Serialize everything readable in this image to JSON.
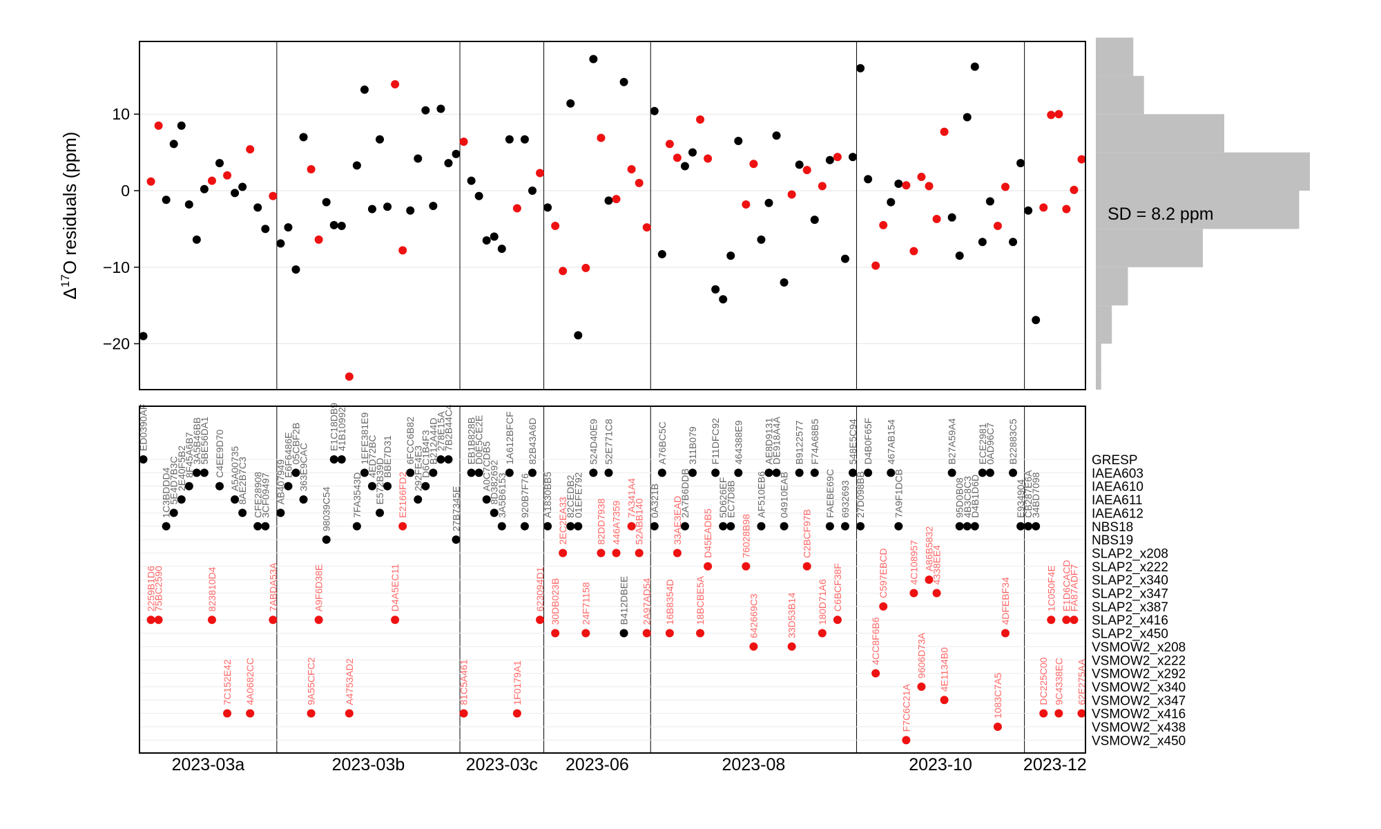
{
  "chart_data": [
    {
      "type": "scatter",
      "ylabel_main": "Δ",
      "ylabel_sup": "17",
      "ylabel_rest": "O residuals (ppm)",
      "ylim": [
        -26,
        19.5
      ],
      "yticks": [
        -20,
        -10,
        0,
        10
      ],
      "ytick_labels": [
        "−20",
        "−10",
        "0",
        "10"
      ],
      "grid": "horizontal",
      "colors": {
        "black": "#000000",
        "red": "#ee1111"
      },
      "groups": [
        {
          "name": "2023-03a",
          "start": 0,
          "end": 17
        },
        {
          "name": "2023-03b",
          "start": 18,
          "end": 41
        },
        {
          "name": "2023-03c",
          "start": 42,
          "end": 52
        },
        {
          "name": "2023-06",
          "start": 53,
          "end": 66
        },
        {
          "name": "2023-08",
          "start": 67,
          "end": 93
        },
        {
          "name": "2023-10",
          "start": 94,
          "end": 115
        },
        {
          "name": "2023-12",
          "start": 116,
          "end": 123
        }
      ],
      "points": [
        {
          "id": "ED0390AF",
          "ref": "GRESP",
          "y": -19.0,
          "c": "black"
        },
        {
          "id": "2259B1D6",
          "ref": "SLAP2_x416",
          "y": 1.2,
          "c": "red"
        },
        {
          "id": "75BC2590",
          "ref": "SLAP2_x416",
          "y": 8.5,
          "c": "red"
        },
        {
          "id": "1C3BDDD4",
          "ref": "NBS18",
          "y": -1.2,
          "c": "black"
        },
        {
          "id": "5E4D7B3C",
          "ref": "IAEA612",
          "y": 6.1,
          "c": "black"
        },
        {
          "id": "2E40F5B2",
          "ref": "IAEA611",
          "y": 8.5,
          "c": "black"
        },
        {
          "id": "8F45A6B7",
          "ref": "IAEA610",
          "y": -1.8,
          "c": "black"
        },
        {
          "id": "3A5B46BB",
          "ref": "IAEA603",
          "y": -6.4,
          "c": "black"
        },
        {
          "id": "5BE56DA1",
          "ref": "IAEA603",
          "y": 0.2,
          "c": "black"
        },
        {
          "id": "823810D4",
          "ref": "SLAP2_x416",
          "y": 1.3,
          "c": "red"
        },
        {
          "id": "C4EE9D70",
          "ref": "IAEA610",
          "y": 3.6,
          "c": "black"
        },
        {
          "id": "7C152E42",
          "ref": "VSMOW2_x416",
          "y": 2.0,
          "c": "red"
        },
        {
          "id": "A5A00735",
          "ref": "IAEA611",
          "y": -0.3,
          "c": "black"
        },
        {
          "id": "8AE2B7C3",
          "ref": "IAEA612",
          "y": 0.5,
          "c": "black"
        },
        {
          "id": "4A0682CC",
          "ref": "VSMOW2_x416",
          "y": 5.4,
          "c": "red"
        },
        {
          "id": "CFE28908",
          "ref": "NBS18",
          "y": -2.2,
          "c": "black"
        },
        {
          "id": "3CF09497",
          "ref": "NBS18",
          "y": -5.0,
          "c": "black"
        },
        {
          "id": "7ABDA53A",
          "ref": "SLAP2_x416",
          "y": -0.7,
          "c": "red"
        },
        {
          "id": "AB407949",
          "ref": "IAEA612",
          "y": -6.9,
          "c": "black"
        },
        {
          "id": "E6F6486E",
          "ref": "IAEA610",
          "y": -4.8,
          "c": "black"
        },
        {
          "id": "05CBF2B",
          "ref": "IAEA603",
          "y": -10.3,
          "c": "black"
        },
        {
          "id": "363E9CAC",
          "ref": "IAEA611",
          "y": 7.0,
          "c": "black"
        },
        {
          "id": "9A55CFC2",
          "ref": "VSMOW2_x416",
          "y": 2.8,
          "c": "red"
        },
        {
          "id": "A9F6D38E",
          "ref": "SLAP2_x416",
          "y": -6.4,
          "c": "red"
        },
        {
          "id": "98039C54",
          "ref": "NBS19",
          "y": -1.5,
          "c": "black"
        },
        {
          "id": "E1C18DB9",
          "ref": "GRESP",
          "y": -4.5,
          "c": "black"
        },
        {
          "id": "41B10992",
          "ref": "GRESP",
          "y": -4.6,
          "c": "black"
        },
        {
          "id": "A4753AD2",
          "ref": "VSMOW2_x416",
          "y": -24.3,
          "c": "red"
        },
        {
          "id": "7FA3543D",
          "ref": "NBS18",
          "y": 3.3,
          "c": "black"
        },
        {
          "id": "1EFE381E9",
          "ref": "IAEA603",
          "y": 13.2,
          "c": "black"
        },
        {
          "id": "4ED72BC",
          "ref": "IAEA610",
          "y": -2.4,
          "c": "black"
        },
        {
          "id": "E572B39D",
          "ref": "IAEA612",
          "y": 6.7,
          "c": "black"
        },
        {
          "id": "BBE7D31",
          "ref": "IAEA610",
          "y": -2.1,
          "c": "black"
        },
        {
          "id": "D4A5EC11",
          "ref": "SLAP2_x416",
          "y": 13.9,
          "c": "red"
        },
        {
          "id": "E2166FD2",
          "ref": "NBS18",
          "y": -7.8,
          "c": "red"
        },
        {
          "id": "6FCC6B82",
          "ref": "IAEA603",
          "y": -2.6,
          "c": "black"
        },
        {
          "id": "292FE4E3",
          "ref": "IAEA611",
          "y": 4.2,
          "c": "black"
        },
        {
          "id": "D6C1B4F3",
          "ref": "IAEA610",
          "y": 10.5,
          "c": "black"
        },
        {
          "id": "B212A44D",
          "ref": "IAEA603",
          "y": -2.0,
          "c": "black"
        },
        {
          "id": "278E15A",
          "ref": "GRESP",
          "y": 10.7,
          "c": "black"
        },
        {
          "id": "7B2B44C4",
          "ref": "GRESP",
          "y": 3.6,
          "c": "black"
        },
        {
          "id": "27B7345E",
          "ref": "NBS19",
          "y": 4.8,
          "c": "black"
        },
        {
          "id": "81C5A461",
          "ref": "VSMOW2_x416",
          "y": 6.4,
          "c": "red"
        },
        {
          "id": "EB1B828B",
          "ref": "IAEA603",
          "y": 1.3,
          "c": "black"
        },
        {
          "id": "D0E5CE2E",
          "ref": "IAEA603",
          "y": -0.7,
          "c": "black"
        },
        {
          "id": "A0C7CDB5",
          "ref": "IAEA611",
          "y": -6.5,
          "c": "black"
        },
        {
          "id": "8D382692",
          "ref": "IAEA612",
          "y": -6.0,
          "c": "black"
        },
        {
          "id": "3A5B6153",
          "ref": "NBS18",
          "y": -7.6,
          "c": "black"
        },
        {
          "id": "1A612BFCF",
          "ref": "IAEA603",
          "y": 6.7,
          "c": "black"
        },
        {
          "id": "1F0179A1",
          "ref": "VSMOW2_x416",
          "y": -2.3,
          "c": "red"
        },
        {
          "id": "920B7F76",
          "ref": "NBS18",
          "y": 6.7,
          "c": "black"
        },
        {
          "id": "82B43A6D",
          "ref": "IAEA603",
          "y": 0.0,
          "c": "black"
        },
        {
          "id": "623094D1",
          "ref": "SLAP2_x416",
          "y": 2.3,
          "c": "red"
        },
        {
          "id": "A1830BB5",
          "ref": "NBS18",
          "y": -2.2,
          "c": "black"
        },
        {
          "id": "30DB023B",
          "ref": "SLAP2_x450",
          "y": -4.6,
          "c": "red"
        },
        {
          "id": "2EC2EA33",
          "ref": "SLAP2_x208",
          "y": -10.5,
          "c": "red"
        },
        {
          "id": "82CEDB2",
          "ref": "NBS18",
          "y": 11.4,
          "c": "black"
        },
        {
          "id": "01EFE792",
          "ref": "NBS18",
          "y": -18.9,
          "c": "black"
        },
        {
          "id": "24F71158",
          "ref": "SLAP2_x450",
          "y": -10.1,
          "c": "red"
        },
        {
          "id": "524D40E9",
          "ref": "IAEA603",
          "y": 17.2,
          "c": "black"
        },
        {
          "id": "82DD7938",
          "ref": "SLAP2_x208",
          "y": 6.9,
          "c": "red"
        },
        {
          "id": "52E771C8",
          "ref": "IAEA603",
          "y": -1.3,
          "c": "black"
        },
        {
          "id": "446A7359",
          "ref": "SLAP2_x208",
          "y": -1.1,
          "c": "red"
        },
        {
          "id": "B412DBEE",
          "ref": "SLAP2_x450",
          "y": 14.2,
          "c": "black"
        },
        {
          "id": "7A341A4",
          "ref": "NBS18",
          "y": 2.8,
          "c": "red"
        },
        {
          "id": "52ABB140",
          "ref": "SLAP2_x208",
          "y": 1.0,
          "c": "red"
        },
        {
          "id": "2A97AD54",
          "ref": "SLAP2_x450",
          "y": -4.8,
          "c": "red"
        },
        {
          "id": "0A321B",
          "ref": "NBS18",
          "y": 10.4,
          "c": "black"
        },
        {
          "id": "A76BC5C",
          "ref": "IAEA603",
          "y": -8.3,
          "c": "black"
        },
        {
          "id": "16B8354D",
          "ref": "SLAP2_x450",
          "y": 6.1,
          "c": "red"
        },
        {
          "id": "33AE3EAD",
          "ref": "SLAP2_x208",
          "y": 4.3,
          "c": "red"
        },
        {
          "id": "2A7B6DDB",
          "ref": "NBS18",
          "y": 3.2,
          "c": "black"
        },
        {
          "id": "311B079",
          "ref": "IAEA603",
          "y": 5.0,
          "c": "black"
        },
        {
          "id": "18BCBE5A",
          "ref": "SLAP2_x450",
          "y": 9.3,
          "c": "red"
        },
        {
          "id": "D45EADB5",
          "ref": "SLAP2_x222",
          "y": 4.2,
          "c": "red"
        },
        {
          "id": "F11DFC92",
          "ref": "IAEA603",
          "y": -12.9,
          "c": "black"
        },
        {
          "id": "5D626EF",
          "ref": "NBS18",
          "y": -14.2,
          "c": "black"
        },
        {
          "id": "EC7D8B",
          "ref": "NBS18",
          "y": -8.5,
          "c": "black"
        },
        {
          "id": "464388E9",
          "ref": "IAEA603",
          "y": 6.5,
          "c": "black"
        },
        {
          "id": "76028B98",
          "ref": "SLAP2_x222",
          "y": -1.8,
          "c": "red"
        },
        {
          "id": "642669C3",
          "ref": "VSMOW2_x208",
          "y": 3.5,
          "c": "red"
        },
        {
          "id": "AF510EB6",
          "ref": "NBS18",
          "y": -6.4,
          "c": "black"
        },
        {
          "id": "AE8D9131",
          "ref": "IAEA603",
          "y": -1.6,
          "c": "black"
        },
        {
          "id": "DE918A4A",
          "ref": "IAEA603",
          "y": 7.2,
          "c": "black"
        },
        {
          "id": "04910EAB",
          "ref": "NBS18",
          "y": -12.0,
          "c": "black"
        },
        {
          "id": "33D53B14",
          "ref": "VSMOW2_x208",
          "y": -0.5,
          "c": "red"
        },
        {
          "id": "B9122577",
          "ref": "IAEA603",
          "y": 3.4,
          "c": "black"
        },
        {
          "id": "C2BCF97B",
          "ref": "SLAP2_x222",
          "y": 2.7,
          "c": "red"
        },
        {
          "id": "F74A68B5",
          "ref": "IAEA603",
          "y": -3.8,
          "c": "black"
        },
        {
          "id": "180D71A6",
          "ref": "SLAP2_x450",
          "y": 0.6,
          "c": "red"
        },
        {
          "id": "FAEBE69C",
          "ref": "NBS18",
          "y": 4.0,
          "c": "black"
        },
        {
          "id": "C6BCF38F",
          "ref": "SLAP2_x416",
          "y": 4.4,
          "c": "red"
        },
        {
          "id": "6932693",
          "ref": "NBS18",
          "y": -8.9,
          "c": "black"
        },
        {
          "id": "548E5C94",
          "ref": "IAEA603",
          "y": 4.4,
          "c": "black"
        },
        {
          "id": "27D098BB",
          "ref": "NBS18",
          "y": 16.0,
          "c": "black"
        },
        {
          "id": "D4B0F65F",
          "ref": "IAEA603",
          "y": 1.5,
          "c": "black"
        },
        {
          "id": "4CC8F6B6",
          "ref": "VSMOW2_x292",
          "y": -9.8,
          "c": "red"
        },
        {
          "id": "C597EBCD",
          "ref": "SLAP2_x387",
          "y": -4.5,
          "c": "red"
        },
        {
          "id": "467AB154",
          "ref": "IAEA603",
          "y": -1.5,
          "c": "black"
        },
        {
          "id": "7A9F1DCB",
          "ref": "NBS18",
          "y": 0.9,
          "c": "black"
        },
        {
          "id": "F7C6C21A",
          "ref": "VSMOW2_x450",
          "y": 0.7,
          "c": "red"
        },
        {
          "id": "4C108957",
          "ref": "SLAP2_x347",
          "y": -7.9,
          "c": "red"
        },
        {
          "id": "9606D73A",
          "ref": "VSMOW2_x340",
          "y": 1.8,
          "c": "red"
        },
        {
          "id": "A86B5832",
          "ref": "SLAP2_x340",
          "y": 0.6,
          "c": "red"
        },
        {
          "id": "4338EE4",
          "ref": "SLAP2_x347",
          "y": -3.7,
          "c": "red"
        },
        {
          "id": "4E1134B0",
          "ref": "VSMOW2_x347",
          "y": 7.7,
          "c": "red"
        },
        {
          "id": "B27A59A4",
          "ref": "IAEA603",
          "y": -3.5,
          "c": "black"
        },
        {
          "id": "95D0B08",
          "ref": "NBS18",
          "y": -8.5,
          "c": "black"
        },
        {
          "id": "4B3C8C3",
          "ref": "NBS18",
          "y": 9.6,
          "c": "black"
        },
        {
          "id": "D4B1D6D",
          "ref": "NBS18",
          "y": 16.2,
          "c": "black"
        },
        {
          "id": "ECE2981",
          "ref": "IAEA603",
          "y": -6.7,
          "c": "black"
        },
        {
          "id": "0AD96C7",
          "ref": "IAEA603",
          "y": -1.4,
          "c": "black"
        },
        {
          "id": "1083C7A5",
          "ref": "VSMOW2_x438",
          "y": -4.6,
          "c": "red"
        },
        {
          "id": "4DFEBF34",
          "ref": "SLAP2_x450",
          "y": 0.5,
          "c": "red"
        },
        {
          "id": "B22883C5",
          "ref": "IAEA603",
          "y": -6.7,
          "c": "black"
        },
        {
          "id": "E934904",
          "ref": "NBS18",
          "y": 3.6,
          "c": "black"
        },
        {
          "id": "CB287E6A",
          "ref": "NBS18",
          "y": -2.6,
          "c": "black"
        },
        {
          "id": "34BD7098",
          "ref": "NBS18",
          "y": -16.9,
          "c": "black"
        },
        {
          "id": "DC225C00",
          "ref": "VSMOW2_x416",
          "y": -2.2,
          "c": "red"
        },
        {
          "id": "1C050F4E",
          "ref": "SLAP2_x416",
          "y": 9.9,
          "c": "red"
        },
        {
          "id": "9C4338EC",
          "ref": "VSMOW2_x416",
          "y": 10.0,
          "c": "red"
        },
        {
          "id": "E1D6CACD",
          "ref": "SLAP2_x416",
          "y": -2.4,
          "c": "red"
        },
        {
          "id": "FA87ADF7",
          "ref": "SLAP2_x416",
          "y": 0.1,
          "c": "red"
        },
        {
          "id": "62E275AA",
          "ref": "VSMOW2_x416",
          "y": 4.1,
          "c": "red"
        }
      ]
    },
    {
      "type": "bar",
      "orientation": "horizontal",
      "bins": [
        {
          "range": [
            -26,
            -24
          ],
          "count": 1
        },
        {
          "range": [
            -24,
            -20
          ],
          "count": 1
        },
        {
          "range": [
            -20,
            -15
          ],
          "count": 3
        },
        {
          "range": [
            -15,
            -10
          ],
          "count": 6
        },
        {
          "range": [
            -10,
            -5
          ],
          "count": 20
        },
        {
          "range": [
            -5,
            0
          ],
          "count": 38
        },
        {
          "range": [
            0,
            5
          ],
          "count": 40
        },
        {
          "range": [
            5,
            10
          ],
          "count": 24
        },
        {
          "range": [
            10,
            15
          ],
          "count": 9
        },
        {
          "range": [
            15,
            20
          ],
          "count": 7
        }
      ],
      "annotation": "SD = 8.2 ppm",
      "bar_color": "#c0c0c0"
    },
    {
      "type": "scatter",
      "references": [
        "GRESP",
        "IAEA603",
        "IAEA610",
        "IAEA611",
        "IAEA612",
        "NBS18",
        "NBS19",
        "SLAP2_x208",
        "SLAP2_x222",
        "SLAP2_x340",
        "SLAP2_x347",
        "SLAP2_x387",
        "SLAP2_x416",
        "SLAP2_x450",
        "VSMOW2_x208",
        "VSMOW2_x222",
        "VSMOW2_x292",
        "VSMOW2_x340",
        "VSMOW2_x347",
        "VSMOW2_x416",
        "VSMOW2_x438",
        "VSMOW2_x450"
      ],
      "xtick_labels": [
        "2023-03a",
        "2023-03b",
        "2023-03c",
        "2023-06",
        "2023-08",
        "2023-10",
        "2023-12"
      ],
      "grid": "horizontal",
      "label_colors": {
        "black": "#666666",
        "red": "#ff6666"
      }
    }
  ]
}
